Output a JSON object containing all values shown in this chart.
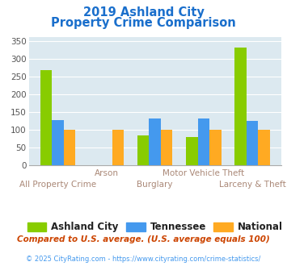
{
  "title_line1": "2019 Ashland City",
  "title_line2": "Property Crime Comparison",
  "categories": [
    "All Property Crime",
    "Arson",
    "Burglary",
    "Motor Vehicle Theft",
    "Larceny & Theft"
  ],
  "ashland_city": [
    267,
    0,
    83,
    79,
    332
  ],
  "tennessee": [
    127,
    0,
    130,
    130,
    124
  ],
  "national": [
    99,
    100,
    99,
    100,
    99
  ],
  "bar_colors": {
    "ashland": "#88cc00",
    "tennessee": "#4499ee",
    "national": "#ffaa22"
  },
  "ylim": [
    0,
    360
  ],
  "yticks": [
    0,
    50,
    100,
    150,
    200,
    250,
    300,
    350
  ],
  "title_color": "#1a6fcc",
  "background_color": "#dce9f0",
  "grid_color": "#ffffff",
  "legend_labels": [
    "Ashland City",
    "Tennessee",
    "National"
  ],
  "footnote1": "Compared to U.S. average. (U.S. average equals 100)",
  "footnote2": "© 2025 CityRating.com - https://www.cityrating.com/crime-statistics/",
  "footnote1_color": "#cc4400",
  "footnote2_color": "#4499ee",
  "cat_label_color": "#aa8877",
  "cat_label_fontsize": 7.5
}
